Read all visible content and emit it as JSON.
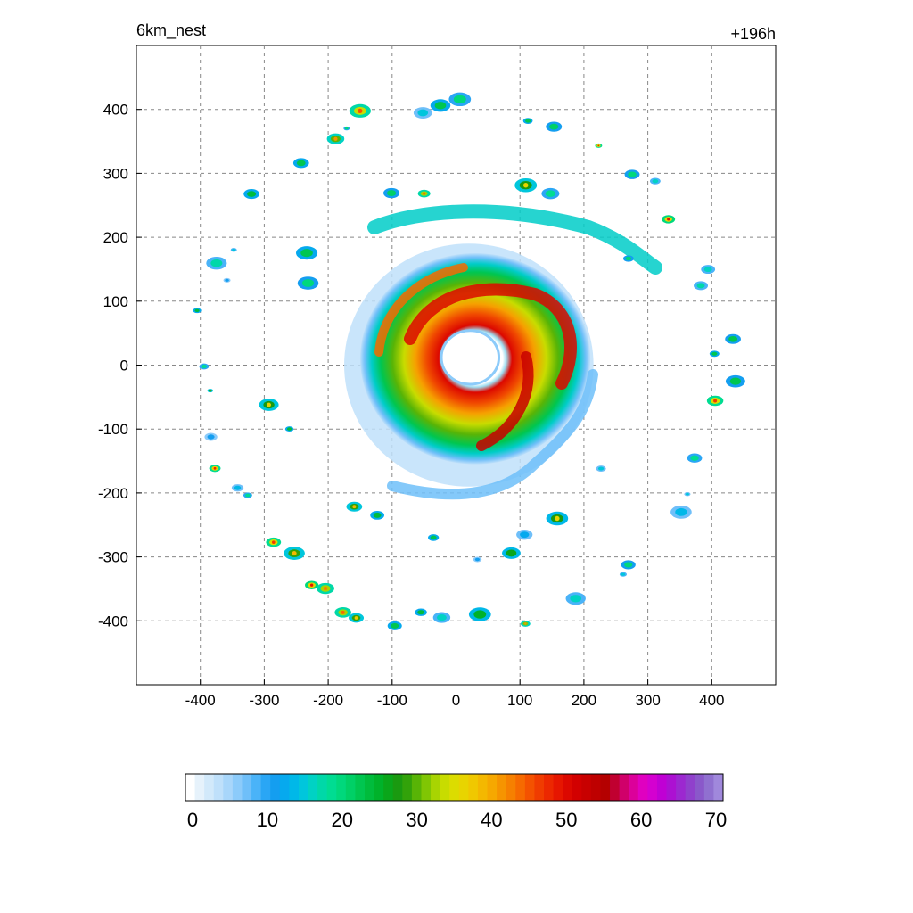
{
  "chart_data": {
    "type": "heatmap",
    "title_left": "6km_nest",
    "title_right": "+196h",
    "xlabel": "",
    "ylabel": "",
    "xlim": [
      -500,
      500
    ],
    "ylim": [
      -500,
      500
    ],
    "x_ticks": [
      -400,
      -300,
      -200,
      -100,
      0,
      100,
      200,
      300,
      400
    ],
    "y_ticks": [
      400,
      300,
      200,
      100,
      0,
      -100,
      -200,
      -300,
      -400
    ],
    "grid": "dashed",
    "colorbar": {
      "min": 0,
      "max": 70,
      "tick_labels": [
        "0",
        "10",
        "20",
        "30",
        "40",
        "50",
        "60",
        "70"
      ],
      "tick_values": [
        0,
        10,
        20,
        30,
        40,
        50,
        60,
        70
      ],
      "colors": [
        "#ffffff",
        "#e6f2fb",
        "#d2e9fa",
        "#bfe0fa",
        "#a8d6fa",
        "#8ccbfa",
        "#6fbff9",
        "#4ab3f8",
        "#2aa6f5",
        "#149ef0",
        "#06a9ee",
        "#00b8e8",
        "#00c6dc",
        "#00d2c4",
        "#00d8a8",
        "#00dc92",
        "#00d87c",
        "#00d066",
        "#00c650",
        "#00bc3c",
        "#00b22a",
        "#0aa61a",
        "#1a9a10",
        "#32a20a",
        "#58b406",
        "#80c604",
        "#a8d402",
        "#c8dc00",
        "#dcdc00",
        "#e8d400",
        "#f0c800",
        "#f4b800",
        "#f6a800",
        "#f69400",
        "#f68000",
        "#f66a00",
        "#f45200",
        "#f03c00",
        "#ec2800",
        "#e61600",
        "#dc0800",
        "#d20000",
        "#c80000",
        "#be0000",
        "#b40000",
        "#c00030",
        "#d0006a",
        "#dc009a",
        "#e000c0",
        "#d400d0",
        "#c000d4",
        "#ac10d2",
        "#9c28d0",
        "#9040cc",
        "#8a58ca",
        "#9070d0",
        "#a088dc"
      ]
    },
    "features": {
      "center": [
        30,
        10
      ],
      "core_radius_km": 180,
      "eye_radius_km": 45,
      "max_value": 55
    }
  }
}
